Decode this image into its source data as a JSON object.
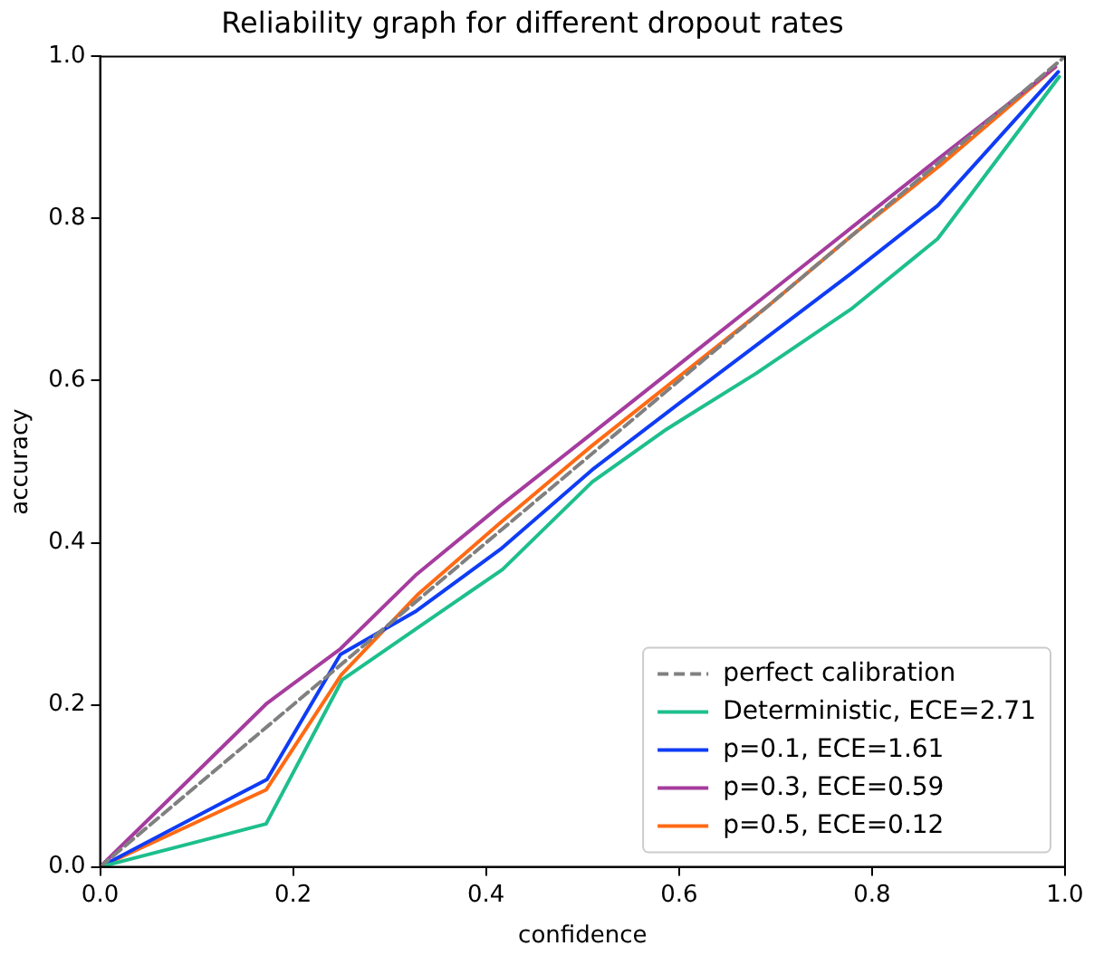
{
  "chart_data": {
    "type": "line",
    "title": "Reliability graph for different dropout rates",
    "xlabel": "confidence",
    "ylabel": "accuracy",
    "xlim": [
      0,
      1
    ],
    "ylim": [
      0,
      1
    ],
    "xticks": [
      {
        "value": 0,
        "label": "0.0"
      },
      0.2,
      0.4,
      0.6,
      0.8,
      {
        "value": 1,
        "label": "1.0"
      }
    ],
    "yticks": [
      {
        "value": 0,
        "label": "0.0"
      },
      0.2,
      0.4,
      0.6,
      0.8,
      {
        "value": 1,
        "label": "1.0"
      }
    ],
    "grid": false,
    "legend": "bottom right",
    "marker": "none",
    "series": [
      {
        "name": "perfect calibration",
        "color": "#808080",
        "line_style": "dashed",
        "x": [
          0,
          1
        ],
        "values": [
          0,
          1
        ]
      },
      {
        "name": "Deterministic, ECE=2.71",
        "color": "#1dbf8c",
        "x": [
          0,
          0.172,
          0.251,
          0.335,
          0.417,
          0.51,
          0.587,
          0.68,
          0.778,
          0.868,
          0.994
        ],
        "values": [
          0,
          0.053,
          0.231,
          0.3,
          0.367,
          0.475,
          0.54,
          0.609,
          0.688,
          0.775,
          0.975
        ]
      },
      {
        "name": "p=0.1, ECE=1.61",
        "color": "#0f3cf5",
        "x": [
          0,
          0.173,
          0.249,
          0.328,
          0.415,
          0.51,
          0.6,
          0.686,
          0.778,
          0.868,
          0.993
        ],
        "values": [
          0,
          0.108,
          0.262,
          0.316,
          0.392,
          0.49,
          0.572,
          0.649,
          0.732,
          0.816,
          0.981
        ]
      },
      {
        "name": "p=0.3, ECE=0.59",
        "color": "#a53c9e",
        "x": [
          0,
          0.173,
          0.249,
          0.328,
          0.415,
          0.51,
          0.6,
          0.69,
          0.78,
          0.87,
          0.99
        ],
        "values": [
          0,
          0.202,
          0.269,
          0.361,
          0.446,
          0.535,
          0.62,
          0.705,
          0.79,
          0.875,
          0.987
        ]
      },
      {
        "name": "p=0.5, ECE=0.12",
        "color": "#ff6a14",
        "x": [
          0,
          0.172,
          0.25,
          0.33,
          0.415,
          0.51,
          0.6,
          0.69,
          0.78,
          0.87,
          0.99
        ],
        "values": [
          0,
          0.095,
          0.237,
          0.337,
          0.425,
          0.52,
          0.605,
          0.69,
          0.78,
          0.865,
          0.987
        ]
      }
    ]
  }
}
